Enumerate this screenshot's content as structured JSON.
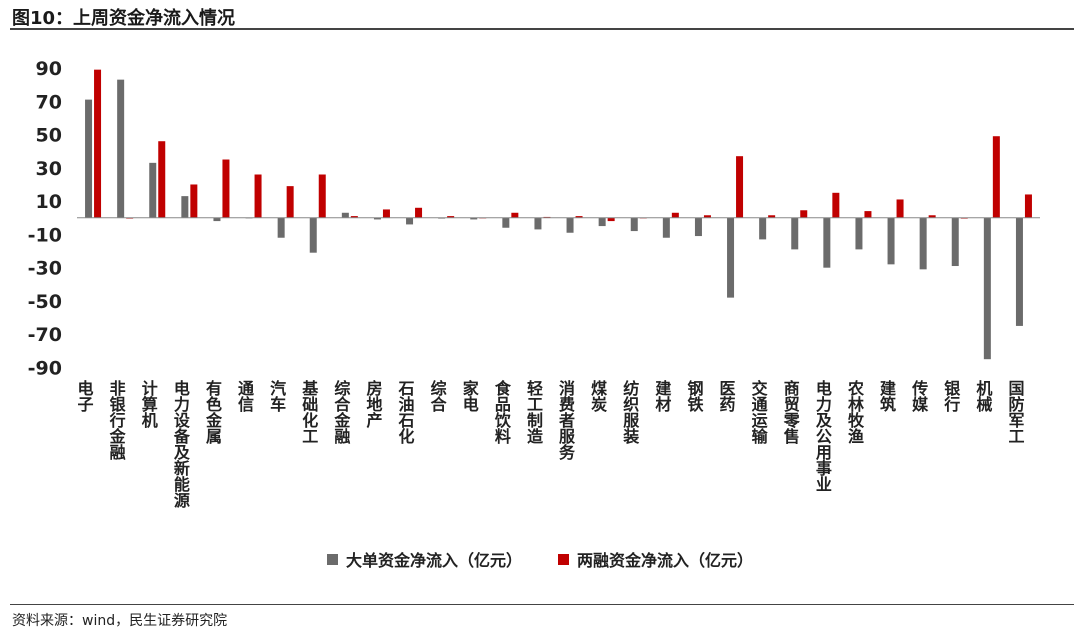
{
  "figure": {
    "title": "图10：上周资金净流入情况",
    "source": "资料来源：wind，民生证券研究院"
  },
  "colors": {
    "series1": "#6b6b6b",
    "series2": "#c00000"
  },
  "chart_data": {
    "type": "bar",
    "categories": [
      "电子",
      "非银行金融",
      "计算机",
      "电力设备及新能源",
      "有色金属",
      "通信",
      "汽车",
      "基础化工",
      "综合金融",
      "房地产",
      "石油石化",
      "综合",
      "家电",
      "食品饮料",
      "轻工制造",
      "消费者服务",
      "煤炭",
      "纺织服装",
      "建材",
      "钢铁",
      "医药",
      "交通运输",
      "商贸零售",
      "电力及公用事业",
      "农林牧渔",
      "建筑",
      "传媒",
      "银行",
      "机械",
      "国防军工"
    ],
    "series": [
      {
        "name": "大单资金净流入（亿元）",
        "values": [
          71,
          83,
          33,
          13,
          -2,
          0,
          -12,
          -21,
          3,
          -1,
          -4,
          -0.5,
          -1,
          -6,
          -7,
          -9,
          -5,
          -8,
          -12,
          -11,
          -48,
          -13,
          -19,
          -30,
          -19,
          -28,
          -31,
          -29,
          -85,
          -65
        ]
      },
      {
        "name": "两融资金净流入（亿元）",
        "values": [
          89,
          -0.5,
          46,
          20,
          35,
          26,
          19,
          26,
          1,
          5,
          6,
          1,
          0,
          3,
          0.5,
          1,
          -2,
          0,
          3,
          1.5,
          37,
          1.5,
          4.5,
          15,
          4,
          11,
          1.5,
          -0.5,
          49,
          14
        ]
      }
    ],
    "yticks": [
      90,
      70,
      50,
      30,
      10,
      -10,
      -30,
      -50,
      -70,
      -90
    ],
    "ylim": [
      -95,
      95
    ],
    "grid": false,
    "legend": "bottom"
  }
}
